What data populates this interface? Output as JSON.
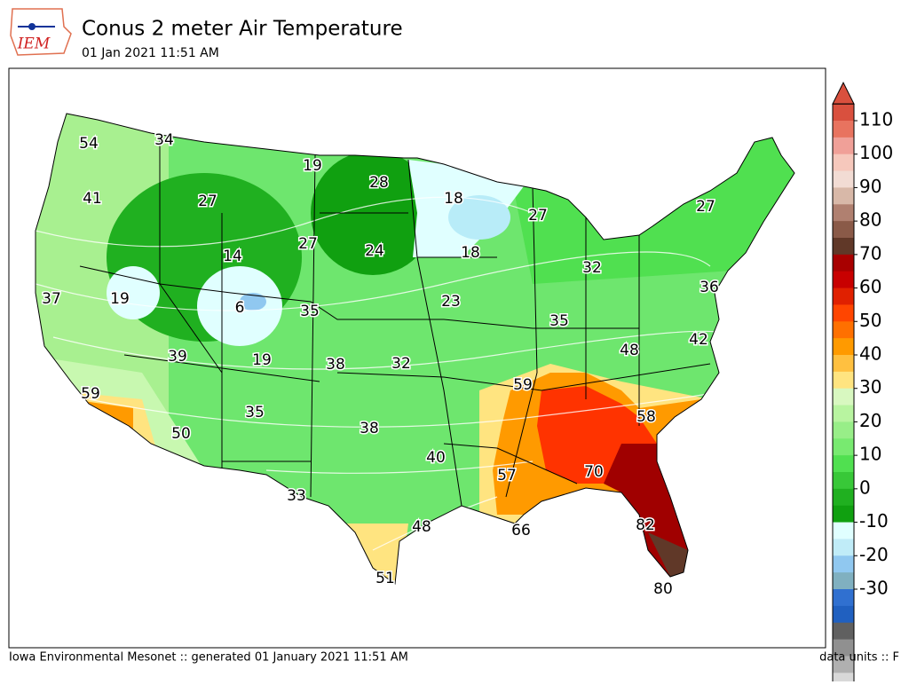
{
  "header": {
    "logo": "IEM",
    "title": "Conus 2 meter Air Temperature",
    "subtitle": "01 Jan 2021 11:51 AM"
  },
  "map": {
    "labels": [
      54,
      34,
      19,
      28,
      41,
      27,
      18,
      27,
      27,
      14,
      27,
      24,
      18,
      32,
      37,
      19,
      6,
      35,
      23,
      36,
      35,
      42,
      39,
      19,
      38,
      32,
      48,
      59,
      59,
      58,
      35,
      38,
      50,
      40,
      70,
      57,
      33,
      66,
      82,
      48,
      51,
      80
    ]
  },
  "colorbar": {
    "ticks": [
      110,
      100,
      90,
      80,
      70,
      60,
      50,
      40,
      30,
      20,
      10,
      0,
      -10,
      -20,
      -30
    ],
    "colors": [
      "#d9503e",
      "#e8735f",
      "#f0a098",
      "#f6c8bc",
      "#f2dcd4",
      "#d8b8a8",
      "#b08070",
      "#8a5a48",
      "#603828",
      "#a80000",
      "#c80000",
      "#e02000",
      "#ff4500",
      "#ff7000",
      "#ff9a00",
      "#ffc040",
      "#ffe480",
      "#d8f8c0",
      "#b8f4a0",
      "#98ee88",
      "#78ea70",
      "#50e050",
      "#38c838",
      "#20b020",
      "#10a010",
      "#e0ffff",
      "#c0ecf8",
      "#90c8f0",
      "#80b0c0",
      "#3070d0",
      "#2060c0",
      "#606060",
      "#909090",
      "#b0b0b0",
      "#d8d8d8"
    ]
  },
  "footer": {
    "left": "Iowa Environmental Mesonet :: generated 01 January 2021 11:51 AM",
    "right": "data units :: F"
  }
}
